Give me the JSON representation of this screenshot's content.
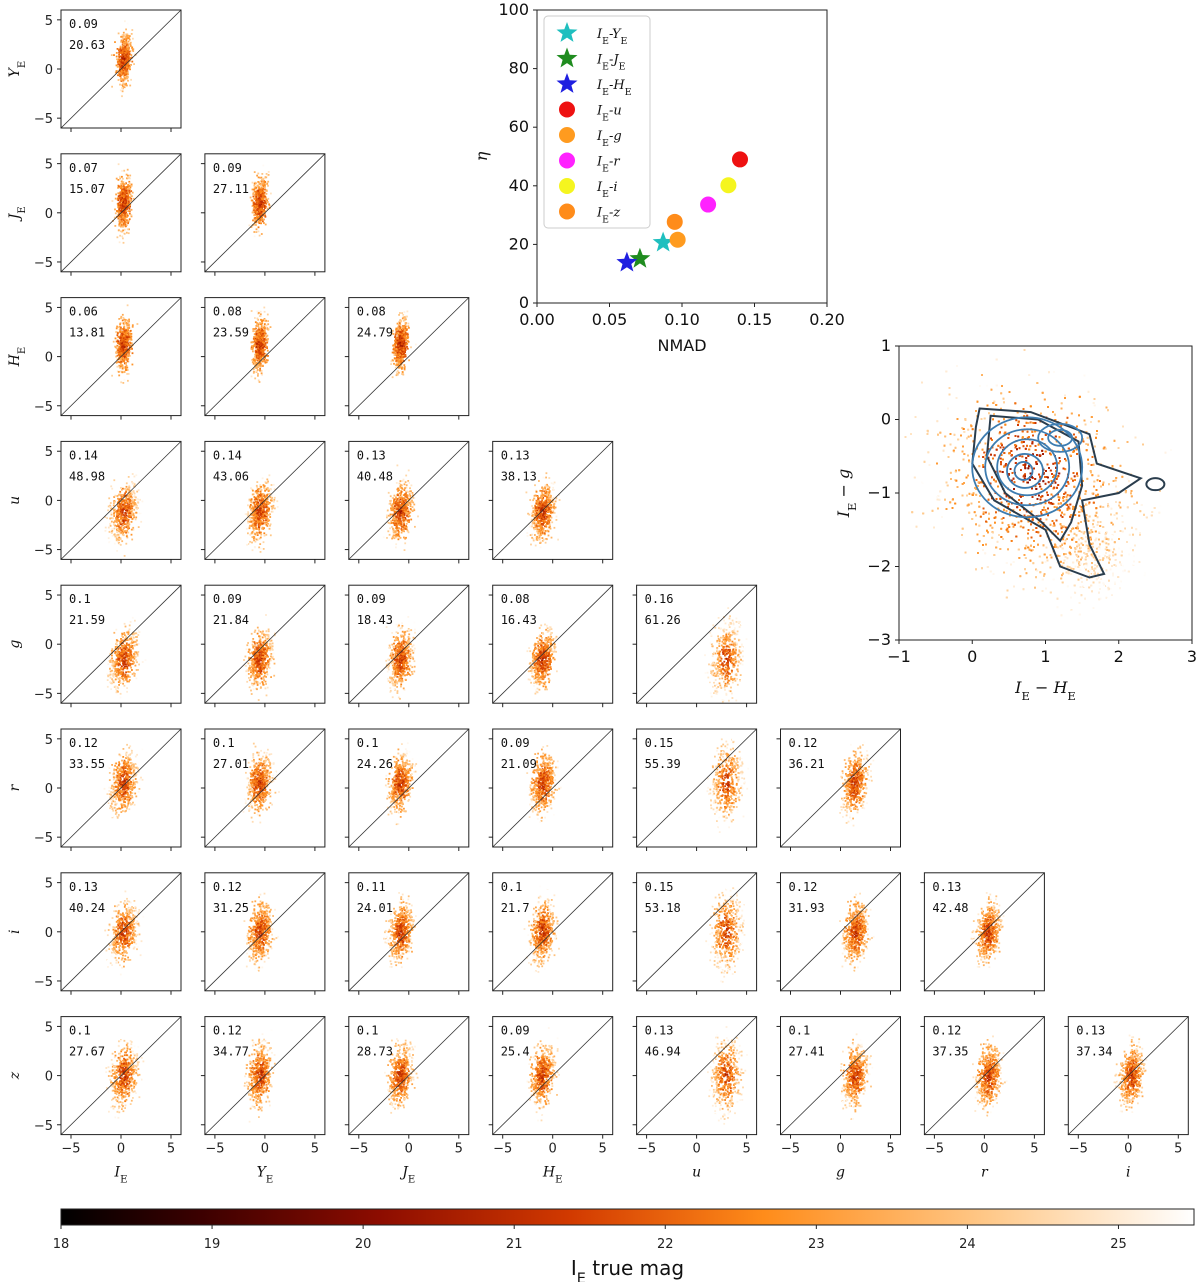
{
  "chart_data": {
    "type": "scatter",
    "title": "",
    "panels_grid": {
      "row_labels": [
        "Y_E",
        "J_E",
        "H_E",
        "u",
        "g",
        "r",
        "i",
        "z"
      ],
      "col_labels": [
        "I_E",
        "Y_E",
        "J_E",
        "H_E",
        "u",
        "g",
        "r",
        "i"
      ],
      "xlim": [
        -6,
        6
      ],
      "ylim": [
        -6,
        6
      ],
      "xticks": [
        -5,
        0,
        5
      ],
      "yticks": [
        -5,
        0,
        5
      ],
      "panels": [
        {
          "row": 0,
          "col": 0,
          "nmad": "0.09",
          "eta": "20.63"
        },
        {
          "row": 1,
          "col": 0,
          "nmad": "0.07",
          "eta": "15.07"
        },
        {
          "row": 1,
          "col": 1,
          "nmad": "0.09",
          "eta": "27.11"
        },
        {
          "row": 2,
          "col": 0,
          "nmad": "0.06",
          "eta": "13.81"
        },
        {
          "row": 2,
          "col": 1,
          "nmad": "0.08",
          "eta": "23.59"
        },
        {
          "row": 2,
          "col": 2,
          "nmad": "0.08",
          "eta": "24.79"
        },
        {
          "row": 3,
          "col": 0,
          "nmad": "0.14",
          "eta": "48.98"
        },
        {
          "row": 3,
          "col": 1,
          "nmad": "0.14",
          "eta": "43.06"
        },
        {
          "row": 3,
          "col": 2,
          "nmad": "0.13",
          "eta": "40.48"
        },
        {
          "row": 3,
          "col": 3,
          "nmad": "0.13",
          "eta": "38.13"
        },
        {
          "row": 4,
          "col": 0,
          "nmad": "0.1",
          "eta": "21.59"
        },
        {
          "row": 4,
          "col": 1,
          "nmad": "0.09",
          "eta": "21.84"
        },
        {
          "row": 4,
          "col": 2,
          "nmad": "0.09",
          "eta": "18.43"
        },
        {
          "row": 4,
          "col": 3,
          "nmad": "0.08",
          "eta": "16.43"
        },
        {
          "row": 4,
          "col": 4,
          "nmad": "0.16",
          "eta": "61.26"
        },
        {
          "row": 5,
          "col": 0,
          "nmad": "0.12",
          "eta": "33.55"
        },
        {
          "row": 5,
          "col": 1,
          "nmad": "0.1",
          "eta": "27.01"
        },
        {
          "row": 5,
          "col": 2,
          "nmad": "0.1",
          "eta": "24.26"
        },
        {
          "row": 5,
          "col": 3,
          "nmad": "0.09",
          "eta": "21.09"
        },
        {
          "row": 5,
          "col": 4,
          "nmad": "0.15",
          "eta": "55.39"
        },
        {
          "row": 5,
          "col": 5,
          "nmad": "0.12",
          "eta": "36.21"
        },
        {
          "row": 6,
          "col": 0,
          "nmad": "0.13",
          "eta": "40.24"
        },
        {
          "row": 6,
          "col": 1,
          "nmad": "0.12",
          "eta": "31.25"
        },
        {
          "row": 6,
          "col": 2,
          "nmad": "0.11",
          "eta": "24.01"
        },
        {
          "row": 6,
          "col": 3,
          "nmad": "0.1",
          "eta": "21.7"
        },
        {
          "row": 6,
          "col": 4,
          "nmad": "0.15",
          "eta": "53.18"
        },
        {
          "row": 6,
          "col": 5,
          "nmad": "0.12",
          "eta": "31.93"
        },
        {
          "row": 6,
          "col": 6,
          "nmad": "0.13",
          "eta": "42.48"
        },
        {
          "row": 7,
          "col": 0,
          "nmad": "0.1",
          "eta": "27.67"
        },
        {
          "row": 7,
          "col": 1,
          "nmad": "0.12",
          "eta": "34.77"
        },
        {
          "row": 7,
          "col": 2,
          "nmad": "0.1",
          "eta": "28.73"
        },
        {
          "row": 7,
          "col": 3,
          "nmad": "0.09",
          "eta": "25.4"
        },
        {
          "row": 7,
          "col": 4,
          "nmad": "0.13",
          "eta": "46.94"
        },
        {
          "row": 7,
          "col": 5,
          "nmad": "0.1",
          "eta": "27.41"
        },
        {
          "row": 7,
          "col": 6,
          "nmad": "0.12",
          "eta": "37.35"
        },
        {
          "row": 7,
          "col": 7,
          "nmad": "0.13",
          "eta": "37.34"
        }
      ]
    },
    "summary_plot": {
      "xlabel": "NMAD",
      "ylabel": "η",
      "xlim": [
        0.0,
        0.2
      ],
      "ylim": [
        0,
        100
      ],
      "xticks": [
        "0.00",
        "0.05",
        "0.10",
        "0.15",
        "0.20"
      ],
      "yticks": [
        "0",
        "20",
        "40",
        "60",
        "80",
        "100"
      ],
      "legend_placement": "top-left",
      "series": [
        {
          "name": "I_E-Y_E",
          "marker": "star",
          "color": "#1fbfbf",
          "x": 0.087,
          "y": 20.6
        },
        {
          "name": "I_E-J_E",
          "marker": "star",
          "color": "#1f8c1f",
          "x": 0.071,
          "y": 15.1
        },
        {
          "name": "I_E-H_E",
          "marker": "star",
          "color": "#1f1fe0",
          "x": 0.062,
          "y": 13.8
        },
        {
          "name": "I_E-u",
          "marker": "circle",
          "color": "#ee1111",
          "x": 0.14,
          "y": 49.0
        },
        {
          "name": "I_E-g",
          "marker": "circle",
          "color": "#ff9b1f",
          "x": 0.097,
          "y": 21.6
        },
        {
          "name": "I_E-r",
          "marker": "circle",
          "color": "#ff22ff",
          "x": 0.118,
          "y": 33.6
        },
        {
          "name": "I_E-i",
          "marker": "circle",
          "color": "#f5f51f",
          "x": 0.132,
          "y": 40.2
        },
        {
          "name": "I_E-z",
          "marker": "circle",
          "color": "#ff8c1a",
          "x": 0.095,
          "y": 27.7
        }
      ]
    },
    "color_plot": {
      "xlabel": "I_E − H_E",
      "ylabel": "I_E − g",
      "xlim": [
        -1,
        3
      ],
      "ylim": [
        -3,
        1
      ],
      "xticks": [
        "−1",
        "0",
        "1",
        "2",
        "3"
      ],
      "yticks": [
        "1",
        "0",
        "−1",
        "−2",
        "−3"
      ]
    },
    "colorbar": {
      "label": "I_E true mag",
      "range": [
        18,
        25.5
      ],
      "ticks": [
        "18",
        "19",
        "20",
        "21",
        "22",
        "23",
        "24",
        "25"
      ],
      "colormap": [
        "#000000",
        "#3a0000",
        "#8c0c00",
        "#d23a00",
        "#ff8c1a",
        "#ffc98a",
        "#ffffff"
      ]
    }
  }
}
